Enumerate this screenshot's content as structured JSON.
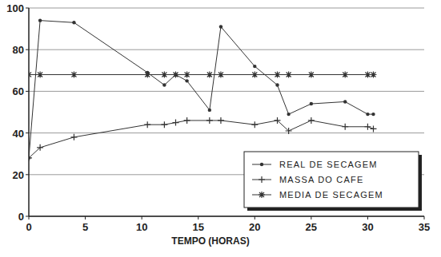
{
  "chart_data": {
    "type": "line",
    "x_label": "TEMPO (HORAS)",
    "x": [
      0,
      1,
      4,
      10.5,
      12,
      13,
      14,
      16,
      17,
      20,
      22,
      23,
      25,
      28,
      30,
      30.5
    ],
    "series": [
      {
        "name": "REAL DE SECAGEM",
        "color": "#333333",
        "marker": "dot",
        "line_style": "solid",
        "values": [
          28,
          94,
          93,
          69,
          63,
          68,
          65,
          51,
          91,
          72,
          63,
          49,
          54,
          55,
          49,
          49
        ]
      },
      {
        "name": "MASSA DO CAFE",
        "color": "#333333",
        "marker": "plus",
        "line_style": "solid",
        "values": [
          28,
          33,
          38,
          44,
          44,
          45,
          46,
          46,
          46,
          44,
          46,
          41,
          46,
          43,
          43,
          42
        ]
      },
      {
        "name": "MEDIA DE SECAGEM",
        "color": "#333333",
        "marker": "asterisk",
        "line_style": "solid",
        "values": [
          68,
          68,
          68,
          68,
          68,
          68,
          68,
          68,
          68,
          68,
          68,
          68,
          68,
          68,
          68,
          68
        ]
      }
    ],
    "xlim": [
      0,
      35
    ],
    "xticks": [
      0,
      5,
      10,
      15,
      20,
      25,
      30,
      35
    ],
    "ylim": [
      0,
      100
    ],
    "yticks": [
      0,
      20,
      40,
      60,
      80,
      100
    ],
    "grid": true,
    "legend": "lower right"
  }
}
